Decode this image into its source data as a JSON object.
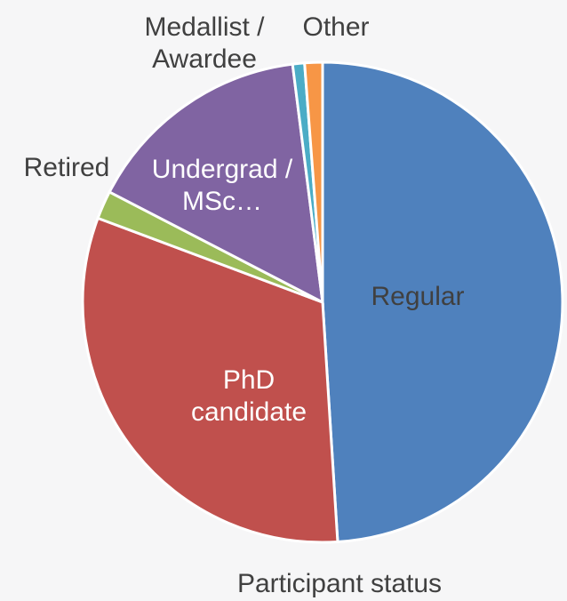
{
  "chart_data": {
    "type": "pie",
    "title": "Participant status",
    "categories": [
      "Regular",
      "PhD\ncandidate",
      "Retired",
      "Undergrad /\nMSc…",
      "Medallist /\nAwardee",
      "Other"
    ],
    "values": [
      49,
      31.7,
      1.9,
      15.4,
      0.8,
      1.2
    ],
    "colors": [
      "#4f81bd",
      "#c0504d",
      "#9bbb59",
      "#8064a2",
      "#4bacc6",
      "#f79646"
    ]
  }
}
